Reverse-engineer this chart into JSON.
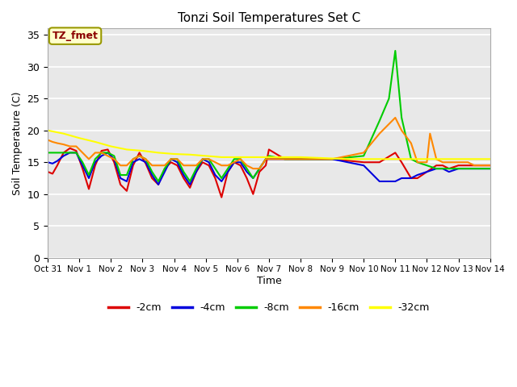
{
  "title": "Tonzi Soil Temperatures Set C",
  "xlabel": "Time",
  "ylabel": "Soil Temperature (C)",
  "plot_bg_color": "#e8e8e8",
  "ylim": [
    0,
    36
  ],
  "yticks": [
    0,
    5,
    10,
    15,
    20,
    25,
    30,
    35
  ],
  "xtick_labels": [
    "Oct 31",
    "Nov 1",
    "Nov 2",
    "Nov 3",
    "Nov 4",
    "Nov 5",
    "Nov 6",
    "Nov 7",
    "Nov 8",
    "Nov 9",
    "Nov 10",
    "Nov 11",
    "Nov 12",
    "Nov 13",
    "Nov 14"
  ],
  "annotation_text": "TZ_fmet",
  "annotation_color": "#8b0000",
  "annotation_bg": "#ffffcc",
  "annotation_border": "#999900",
  "series": {
    "neg2cm": {
      "label": "-2cm",
      "color": "#dd0000",
      "x": [
        0,
        0.15,
        0.3,
        0.5,
        0.7,
        0.9,
        1.1,
        1.3,
        1.5,
        1.7,
        1.9,
        2.1,
        2.3,
        2.5,
        2.7,
        2.9,
        3.1,
        3.3,
        3.5,
        3.7,
        3.9,
        4.1,
        4.3,
        4.5,
        4.7,
        4.9,
        5.1,
        5.3,
        5.5,
        5.7,
        5.9,
        6.1,
        6.3,
        6.5,
        6.7,
        6.9,
        7.0,
        7.5,
        8.0,
        9.0,
        10.0,
        10.5,
        11.0,
        11.2,
        11.5,
        11.7,
        12.0,
        12.3,
        12.5,
        12.7,
        13.0,
        13.3,
        13.5,
        13.7,
        14.0
      ],
      "y": [
        13.5,
        13.2,
        14.5,
        16.5,
        17.2,
        16.8,
        14.0,
        10.8,
        14.5,
        16.8,
        17.0,
        15.0,
        11.5,
        10.5,
        14.5,
        16.5,
        14.8,
        12.5,
        11.5,
        14.0,
        15.0,
        14.5,
        12.5,
        11.0,
        13.5,
        15.0,
        14.5,
        12.5,
        9.5,
        13.5,
        15.0,
        14.5,
        12.5,
        10.0,
        13.5,
        14.5,
        17.0,
        15.5,
        15.5,
        15.5,
        15.0,
        15.0,
        16.5,
        15.0,
        12.5,
        12.5,
        13.5,
        14.5,
        14.5,
        14.0,
        14.5,
        14.5,
        14.5,
        14.5,
        14.5
      ]
    },
    "neg4cm": {
      "label": "-4cm",
      "color": "#0000dd",
      "x": [
        0,
        0.15,
        0.3,
        0.5,
        0.7,
        0.9,
        1.1,
        1.3,
        1.5,
        1.7,
        1.9,
        2.1,
        2.3,
        2.5,
        2.7,
        2.9,
        3.1,
        3.3,
        3.5,
        3.7,
        3.9,
        4.1,
        4.3,
        4.5,
        4.7,
        4.9,
        5.1,
        5.3,
        5.5,
        5.7,
        5.9,
        6.1,
        6.3,
        6.5,
        6.7,
        6.9,
        7.0,
        7.5,
        8.0,
        9.0,
        10.0,
        10.5,
        11.0,
        11.2,
        11.5,
        11.7,
        12.0,
        12.3,
        12.5,
        12.7,
        13.0,
        13.3,
        13.5,
        13.7,
        14.0
      ],
      "y": [
        15.0,
        14.8,
        15.2,
        16.0,
        16.5,
        16.5,
        14.5,
        12.5,
        15.0,
        16.0,
        16.5,
        15.5,
        12.5,
        12.0,
        15.0,
        15.5,
        15.0,
        13.0,
        11.5,
        13.5,
        15.5,
        15.0,
        13.0,
        11.5,
        13.5,
        15.5,
        15.0,
        13.0,
        12.0,
        13.5,
        15.0,
        15.0,
        13.5,
        12.5,
        14.0,
        15.5,
        15.5,
        15.5,
        15.5,
        15.5,
        14.5,
        12.0,
        12.0,
        12.5,
        12.5,
        13.0,
        13.5,
        14.0,
        14.0,
        13.5,
        14.0,
        14.0,
        14.0,
        14.0,
        14.0
      ]
    },
    "neg8cm": {
      "label": "-8cm",
      "color": "#00cc00",
      "x": [
        0,
        0.15,
        0.3,
        0.5,
        0.7,
        0.9,
        1.1,
        1.3,
        1.5,
        1.7,
        1.9,
        2.1,
        2.3,
        2.5,
        2.7,
        2.9,
        3.1,
        3.3,
        3.5,
        3.7,
        3.9,
        4.1,
        4.3,
        4.5,
        4.7,
        4.9,
        5.1,
        5.3,
        5.5,
        5.7,
        5.9,
        6.1,
        6.3,
        6.5,
        6.7,
        6.9,
        7.0,
        7.5,
        8.0,
        9.0,
        10.0,
        10.5,
        10.8,
        11.0,
        11.2,
        11.5,
        11.7,
        12.0,
        12.3,
        12.5,
        12.7,
        13.0,
        13.3,
        13.5,
        13.7,
        14.0
      ],
      "y": [
        16.5,
        16.5,
        16.5,
        16.5,
        16.5,
        16.5,
        15.0,
        13.0,
        15.5,
        16.5,
        16.5,
        16.0,
        13.0,
        13.0,
        15.5,
        16.0,
        15.5,
        13.5,
        12.0,
        14.0,
        15.5,
        15.5,
        13.5,
        12.0,
        14.0,
        15.5,
        15.5,
        14.0,
        12.5,
        14.0,
        15.5,
        15.5,
        14.0,
        12.5,
        14.0,
        15.5,
        16.0,
        15.5,
        15.5,
        15.5,
        16.0,
        21.5,
        25.0,
        32.5,
        22.0,
        15.5,
        15.0,
        14.5,
        14.0,
        14.0,
        14.0,
        14.0,
        14.0,
        14.0,
        14.0,
        14.0
      ]
    },
    "neg16cm": {
      "label": "-16cm",
      "color": "#ff8800",
      "x": [
        0,
        0.15,
        0.3,
        0.5,
        0.7,
        0.9,
        1.1,
        1.3,
        1.5,
        1.7,
        1.9,
        2.1,
        2.3,
        2.5,
        2.7,
        2.9,
        3.1,
        3.3,
        3.5,
        3.7,
        3.9,
        4.1,
        4.3,
        4.5,
        4.7,
        4.9,
        5.1,
        5.3,
        5.5,
        5.7,
        5.9,
        6.1,
        6.3,
        6.5,
        6.7,
        6.9,
        7.0,
        7.5,
        8.0,
        9.0,
        10.0,
        10.5,
        11.0,
        11.2,
        11.5,
        11.7,
        12.0,
        12.1,
        12.3,
        12.5,
        12.7,
        13.0,
        13.3,
        13.5,
        13.7,
        14.0
      ],
      "y": [
        18.5,
        18.2,
        18.0,
        17.8,
        17.5,
        17.5,
        16.5,
        15.5,
        16.5,
        16.5,
        16.0,
        15.5,
        14.5,
        14.5,
        15.5,
        16.0,
        15.5,
        14.5,
        14.5,
        14.5,
        15.5,
        15.5,
        14.5,
        14.5,
        14.5,
        15.5,
        15.5,
        15.0,
        14.5,
        14.5,
        15.0,
        15.5,
        14.5,
        14.0,
        14.0,
        15.5,
        15.5,
        15.5,
        15.5,
        15.5,
        16.5,
        19.5,
        22.0,
        20.0,
        18.0,
        15.0,
        15.0,
        19.5,
        15.5,
        15.0,
        15.0,
        15.0,
        15.0,
        14.5,
        14.5,
        14.5
      ]
    },
    "neg32cm": {
      "label": "-32cm",
      "color": "#ffff00",
      "x": [
        0,
        0.5,
        1.0,
        1.5,
        2.0,
        2.5,
        3.0,
        3.5,
        4.0,
        4.5,
        5.0,
        5.5,
        6.0,
        6.5,
        7.0,
        7.5,
        8.0,
        8.5,
        9.0,
        9.5,
        10.0,
        10.5,
        11.0,
        11.5,
        12.0,
        12.5,
        13.0,
        13.5,
        14.0
      ],
      "y": [
        20.0,
        19.5,
        18.8,
        18.2,
        17.5,
        17.0,
        16.8,
        16.5,
        16.3,
        16.2,
        16.0,
        15.8,
        15.8,
        15.8,
        15.8,
        15.8,
        15.8,
        15.7,
        15.6,
        15.5,
        15.5,
        15.5,
        15.5,
        15.5,
        15.5,
        15.5,
        15.5,
        15.5,
        15.5
      ]
    }
  }
}
